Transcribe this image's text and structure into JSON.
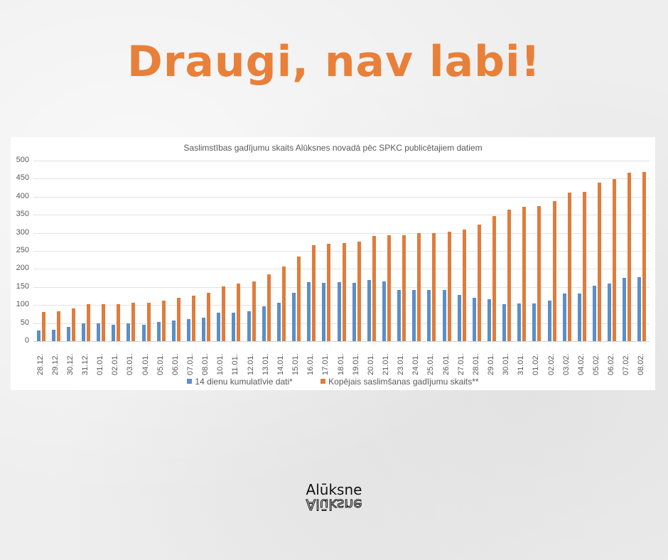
{
  "headline": "Draugi, nav labi!",
  "logo": {
    "text": "Alūksne"
  },
  "colors": {
    "headline": "#e8803a",
    "series_blue": "#5b8fc7",
    "series_orange": "#e07c3c"
  },
  "chart_data": {
    "type": "bar",
    "title": "Saslimstības gadījumu skaits Alūksnes novadā pēc SPKC publicētajiem datiem",
    "xlabel": "",
    "ylabel": "",
    "ylim": [
      0,
      500
    ],
    "yticks": [
      0,
      50,
      100,
      150,
      200,
      250,
      300,
      350,
      400,
      450,
      500
    ],
    "grid": true,
    "legend_position": "bottom",
    "categories": [
      "28.12.",
      "29.12.",
      "30.12.",
      "31.12.",
      "01.01.",
      "02.01.",
      "03.01.",
      "04.01.",
      "05.01.",
      "06.01.",
      "07.01.",
      "08.01.",
      "10.01.",
      "11.01.",
      "12.01.",
      "13.01.",
      "14.01.",
      "15.01.",
      "16.01.",
      "17.01.",
      "18.01.",
      "19.01.",
      "20.01.",
      "21.01.",
      "23.01.",
      "24.01.",
      "25.01.",
      "26.01.",
      "27.01.",
      "28.01.",
      "29.01.",
      "30.01.",
      "31.01.",
      "01.02.",
      "02.02.",
      "03.02.",
      "04.02.",
      "05.02.",
      "06.02.",
      "07.02.",
      "08.02."
    ],
    "series": [
      {
        "name": "14 dienu kumulatīvie dati*",
        "color": "#5b8fc7",
        "values": [
          29,
          31,
          39,
          49,
          49,
          45,
          49,
          46,
          53,
          57,
          61,
          65,
          78,
          79,
          82,
          96,
          107,
          133,
          164,
          161,
          163,
          161,
          170,
          165,
          142,
          141,
          142,
          142,
          127,
          120,
          116,
          102,
          104,
          104,
          112,
          132,
          132,
          154,
          160,
          176,
          177
        ]
      },
      {
        "name": "Kopējais saslimšanas gadījumu skaits**",
        "color": "#e07c3c",
        "values": [
          80,
          83,
          91,
          102,
          103,
          102,
          106,
          106,
          113,
          120,
          126,
          133,
          152,
          160,
          165,
          186,
          206,
          234,
          266,
          269,
          271,
          276,
          292,
          294,
          294,
          299,
          299,
          303,
          310,
          322,
          346,
          364,
          372,
          374,
          387,
          412,
          414,
          438,
          449,
          466,
          468
        ]
      }
    ]
  }
}
